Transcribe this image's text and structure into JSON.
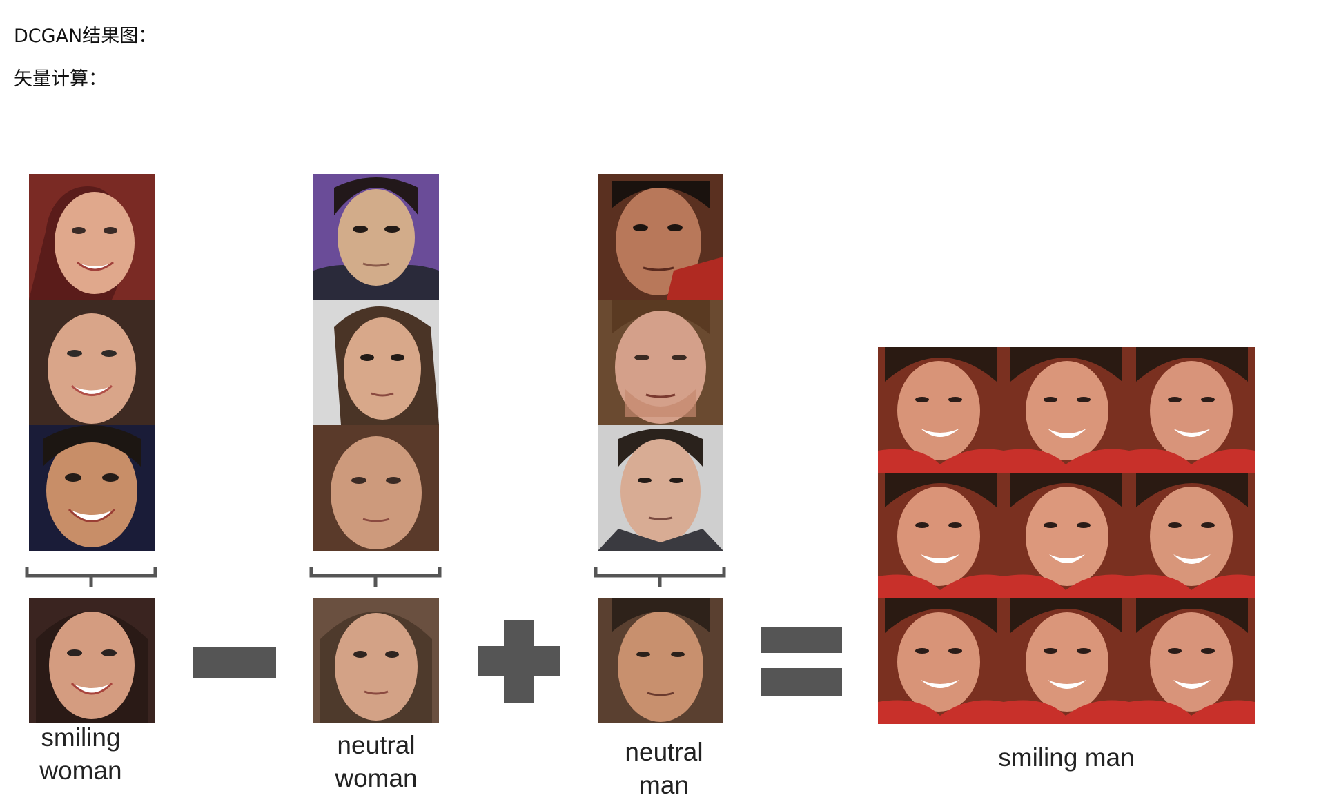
{
  "document": {
    "heading": "DCGAN结果图：",
    "subheading": "矢量计算："
  },
  "figure": {
    "groups": [
      {
        "caption_line1": "smiling",
        "caption_line2": "woman",
        "faces": [
          "smiling-woman-face-1",
          "smiling-woman-face-2",
          "smiling-woman-face-3"
        ],
        "average_face": "smiling-woman-average-face"
      },
      {
        "caption_line1": "neutral",
        "caption_line2": "woman",
        "faces": [
          "neutral-woman-face-1",
          "neutral-woman-face-2",
          "neutral-woman-face-3"
        ],
        "average_face": "neutral-woman-average-face"
      },
      {
        "caption_line1": "neutral",
        "caption_line2": "man",
        "faces": [
          "neutral-man-face-1",
          "neutral-man-face-2",
          "neutral-man-face-3"
        ],
        "average_face": "neutral-man-average-face"
      }
    ],
    "operators": [
      "minus-icon",
      "plus-icon",
      "equals-icon"
    ],
    "result": {
      "caption": "smiling man",
      "grid_rows": 3,
      "grid_cols": 3
    },
    "colors": {
      "operator_gray": "#555555",
      "brace_gray": "#555555",
      "result_shirt_red": "#c8302a"
    }
  }
}
